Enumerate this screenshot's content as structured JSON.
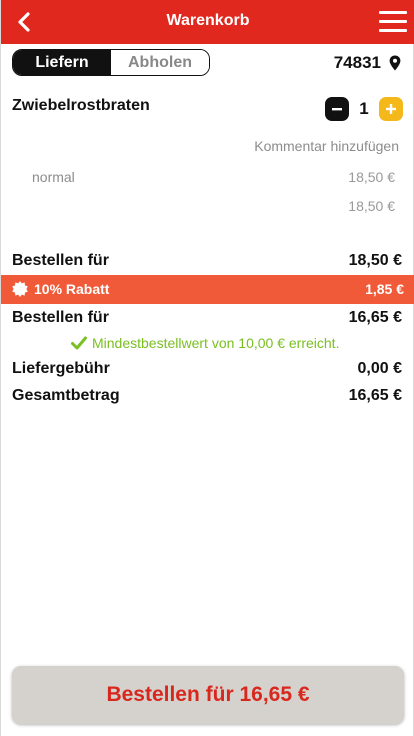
{
  "header": {
    "title": "Warenkorb",
    "background_color": "#e0281f",
    "back_icon": "chevron-left-icon",
    "menu_icon": "hamburger-menu-icon"
  },
  "mode_toggle": {
    "options": [
      "Liefern",
      "Abholen"
    ],
    "selected": "Liefern"
  },
  "location": {
    "zip": "74831",
    "icon": "map-pin-icon"
  },
  "cart": {
    "items": [
      {
        "name": "Zwiebelrostbraten",
        "quantity": "1",
        "comment_link": "Kommentar hinzufügen",
        "variant": "normal",
        "variant_price": "18,50 €",
        "item_total": "18,50 €"
      }
    ]
  },
  "summary": {
    "order_for_label": "Bestellen für",
    "order_for_value": "18,50 €",
    "discount_label": "10% Rabatt",
    "discount_value": "1,85 €",
    "discount_color": "#f05a38",
    "order_for_discounted_label": "Bestellen für",
    "order_for_discounted_value": "16,65 €",
    "min_order_note": "Mindestbestellwert von 10,00 € erreicht.",
    "min_order_color": "#79c021",
    "delivery_fee_label": "Liefergebühr",
    "delivery_fee_value": "0,00 €",
    "total_label": "Gesamtbetrag",
    "total_value": "16,65 €"
  },
  "checkout_button": {
    "label": "Bestellen für 16,65 €",
    "text_color": "#d8281e"
  }
}
